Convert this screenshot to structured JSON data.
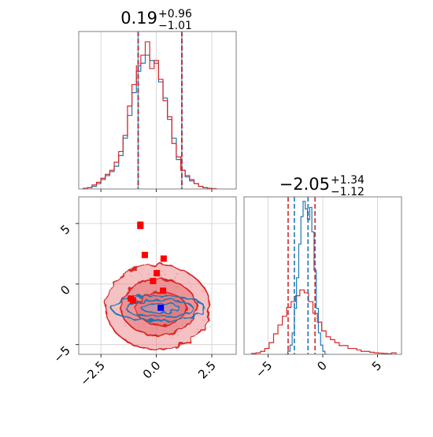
{
  "colors": {
    "blue": "#1f77b4",
    "red": "#d62728",
    "purple": "#7b3f6e",
    "fill_red": "#e8767a",
    "fill_blue": "#8db8d9",
    "marker_red": "#ff0000",
    "marker_blue": "#0000ff"
  },
  "chart_data": [
    {
      "type": "histogram",
      "panel": "top-left marginal (x parameter)",
      "title": {
        "value": "0.19",
        "plus": "+0.96",
        "minus": "−1.01"
      },
      "x_range": [
        -3.5,
        3.6
      ],
      "x_ticks": [
        -2.5,
        0.0,
        2.5
      ],
      "grid": true,
      "quantile_lines": {
        "blue": [
          -0.82,
          0.19,
          1.15
        ],
        "red": [
          -0.82,
          0.19,
          1.15
        ],
        "shown": [
          -0.82,
          1.15
        ]
      },
      "series": [
        {
          "name": "",
          "color": "blue",
          "bin_start": -3.3,
          "bin_width": 0.2,
          "counts": [
            0.5,
            1,
            2,
            4,
            7,
            10,
            13,
            17,
            25,
            38,
            55,
            72,
            88,
            94,
            100,
            96,
            94,
            80,
            68,
            52,
            38,
            22,
            14,
            9,
            6,
            4,
            2,
            1,
            0.5,
            0.3
          ]
        },
        {
          "name": "",
          "color": "red",
          "bin_start": -3.3,
          "bin_width": 0.2,
          "counts": [
            0.3,
            1,
            3,
            5,
            8,
            11,
            14,
            20,
            28,
            40,
            62,
            78,
            92,
            100,
            110,
            90,
            96,
            82,
            66,
            54,
            34,
            24,
            14,
            10,
            7,
            4,
            2,
            1,
            0.5,
            0.2
          ]
        }
      ]
    },
    {
      "type": "histogram",
      "panel": "bottom-right marginal (y parameter)",
      "title": {
        "value": "−2.05",
        "plus": "+1.34",
        "minus": "−1.12"
      },
      "x_range": [
        -7.2,
        7.2
      ],
      "x_ticks": [
        -5,
        0,
        5
      ],
      "grid": true,
      "quantile_lines": {
        "red": [
          -3.17,
          -2.05,
          -0.71
        ],
        "blue": [
          -2.6,
          -2.05,
          -1.35
        ]
      },
      "series": [
        {
          "name": "",
          "color": "blue",
          "bin_start": -3.4,
          "bin_width": 0.2,
          "counts": [
            0,
            2,
            6,
            14,
            30,
            50,
            72,
            90,
            100,
            95,
            88,
            96,
            80,
            55,
            30,
            14,
            6,
            2,
            0
          ]
        },
        {
          "name": "",
          "color": "red",
          "bin_start": -6.5,
          "bin_width": 0.4,
          "counts": [
            0.3,
            0.5,
            1,
            2,
            4,
            7,
            10,
            13,
            16,
            18,
            20,
            22,
            21,
            18,
            14,
            11,
            8,
            6,
            5,
            4,
            3,
            3,
            2,
            2,
            1.5,
            1,
            1,
            0.7,
            0.5,
            0.4,
            0.3,
            0.2,
            0.5
          ]
        }
      ]
    },
    {
      "type": "contour",
      "panel": "bottom-left 2D (x vs y)",
      "x_range": [
        -3.5,
        3.6
      ],
      "y_range": [
        -5.8,
        7.2
      ],
      "x_ticks": [
        -2.5,
        0.0,
        2.5
      ],
      "y_ticks": [
        -5,
        0,
        5
      ],
      "grid": true,
      "red_levels": [
        {
          "cx": 0.05,
          "cy": -1.9,
          "rx": 2.35,
          "ry": 3.5,
          "fill_opacity": 0.45
        },
        {
          "cx": 0.1,
          "cy": -1.9,
          "rx": 1.7,
          "ry": 2.3,
          "fill_opacity": 0.6
        },
        {
          "cx": 0.2,
          "cy": -2.0,
          "rx": 1.15,
          "ry": 1.35,
          "fill_opacity": 0.85
        }
      ],
      "blue_levels": [
        {
          "cx": 0.1,
          "cy": -2.0,
          "rx": 2.1,
          "ry": 1.05
        },
        {
          "cx": 0.15,
          "cy": -2.0,
          "rx": 1.5,
          "ry": 0.7
        },
        {
          "cx": 0.2,
          "cy": -2.0,
          "rx": 0.85,
          "ry": 0.4
        }
      ],
      "red_markers": [
        [
          -0.72,
          4.9
        ],
        [
          -0.72,
          4.8
        ],
        [
          -0.52,
          2.4
        ],
        [
          0.33,
          2.1
        ],
        [
          0.02,
          0.9
        ],
        [
          -0.15,
          0.25
        ],
        [
          0.3,
          -0.55
        ],
        [
          -1.15,
          -1.2
        ],
        [
          -1.05,
          -1.35
        ]
      ],
      "blue_marker": [
        0.2,
        -1.95
      ]
    }
  ]
}
